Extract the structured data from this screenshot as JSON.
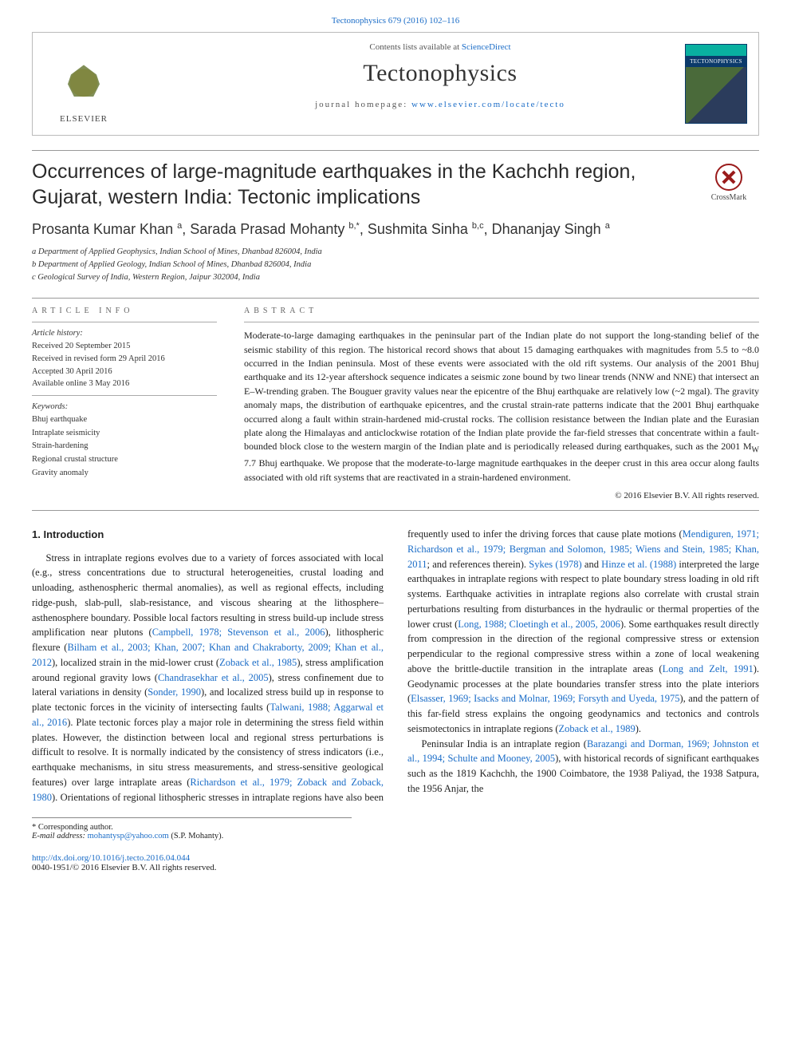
{
  "colors": {
    "link": "#1a6cc7",
    "text": "#222222",
    "rule": "#999999",
    "elsevier_orange": "#f5c56b",
    "elsevier_green": "#6b7b3a",
    "cover_blue": "#0b3a6b",
    "cover_teal": "#09b0a0",
    "crossmark_red": "#9a1b1b"
  },
  "citation": "Tectonophysics 679 (2016) 102–116",
  "header": {
    "contents_line_prefix": "Contents lists available at ",
    "contents_link": "ScienceDirect",
    "journal": "Tectonophysics",
    "homepage_prefix": "journal homepage: ",
    "homepage_url": "www.elsevier.com/locate/tecto",
    "publisher": "ELSEVIER",
    "cover_label": "TECTONOPHYSICS"
  },
  "crossmark_label": "CrossMark",
  "title": "Occurrences of large-magnitude earthquakes in the Kachchh region, Gujarat, western India: Tectonic implications",
  "authors_html": "Prosanta Kumar Khan <sup>a</sup>, Sarada Prasad Mohanty <sup>b,*</sup>, Sushmita Sinha <sup>b,c</sup>, Dhananjay Singh <sup>a</sup>",
  "affiliations": [
    "a Department of Applied Geophysics, Indian School of Mines, Dhanbad 826004, India",
    "b Department of Applied Geology, Indian School of Mines, Dhanbad 826004, India",
    "c Geological Survey of India, Western Region, Jaipur 302004, India"
  ],
  "article_info": {
    "heading": "article info",
    "history_label": "Article history:",
    "history": [
      "Received 20 September 2015",
      "Received in revised form 29 April 2016",
      "Accepted 30 April 2016",
      "Available online 3 May 2016"
    ],
    "keywords_label": "Keywords:",
    "keywords": [
      "Bhuj earthquake",
      "Intraplate seismicity",
      "Strain-hardening",
      "Regional crustal structure",
      "Gravity anomaly"
    ]
  },
  "abstract": {
    "heading": "abstract",
    "text": "Moderate-to-large damaging earthquakes in the peninsular part of the Indian plate do not support the long-standing belief of the seismic stability of this region. The historical record shows that about 15 damaging earthquakes with magnitudes from 5.5 to ~8.0 occurred in the Indian peninsula. Most of these events were associated with the old rift systems. Our analysis of the 2001 Bhuj earthquake and its 12-year aftershock sequence indicates a seismic zone bound by two linear trends (NNW and NNE) that intersect an E–W-trending graben. The Bouguer gravity values near the epicentre of the Bhuj earthquake are relatively low (~2 mgal). The gravity anomaly maps, the distribution of earthquake epicentres, and the crustal strain-rate patterns indicate that the 2001 Bhuj earthquake occurred along a fault within strain-hardened mid-crustal rocks. The collision resistance between the Indian plate and the Eurasian plate along the Himalayas and anticlockwise rotation of the Indian plate provide the far-field stresses that concentrate within a fault-bounded block close to the western margin of the Indian plate and is periodically released during earthquakes, such as the 2001 M_W 7.7 Bhuj earthquake. We propose that the moderate-to-large magnitude earthquakes in the deeper crust in this area occur along faults associated with old rift systems that are reactivated in a strain-hardened environment.",
    "copyright": "© 2016 Elsevier B.V. All rights reserved."
  },
  "body": {
    "section_number_title": "1. Introduction",
    "col_left": "Stress in intraplate regions evolves due to a variety of forces associated with local (e.g., stress concentrations due to structural heterogeneities, crustal loading and unloading, asthenospheric thermal anomalies), as well as regional effects, including ridge-push, slab-pull, slab-resistance, and viscous shearing at the lithosphere–asthenosphere boundary. Possible local factors resulting in stress build-up include stress amplification near plutons (",
    "ref1": "Campbell, 1978; Stevenson et al., 2006",
    "t2": "), lithospheric flexure (",
    "ref2": "Bilham et al., 2003; Khan, 2007; Khan and Chakraborty, 2009; Khan et al., 2012",
    "t3": "), localized strain in the mid-lower crust (",
    "ref3": "Zoback et al., 1985",
    "t4": "), stress amplification around regional gravity lows (",
    "ref4": "Chandrasekhar et al., 2005",
    "t5": "), stress confinement due to lateral variations in density (",
    "ref5": "Sonder, 1990",
    "t6": "), and localized stress build up in response to plate tectonic forces in the vicinity of intersecting faults (",
    "ref6": "Talwani, 1988; Aggarwal et al., 2016",
    "t7": "). Plate tectonic forces play a major role in determining the stress field within plates. However, the distinction between local and regional stress perturbations is difficult to resolve. It is normally indicated by the consistency of stress indicators (i.e., earthquake mechanisms, in situ stress measurements, and stress-sensitive geological features) over large",
    "col_right_1": "intraplate areas (",
    "rref1": "Richardson et al., 1979; Zoback and Zoback, 1980",
    "rt2": "). Orientations of regional lithospheric stresses in intraplate regions have also been frequently used to infer the driving forces that cause plate motions (",
    "rref2": "Mendiguren, 1971; Richardson et al., 1979; Bergman and Solomon, 1985; Wiens and Stein, 1985; Khan, 2011",
    "rt3": "; and references therein). ",
    "rref3": "Sykes (1978)",
    "rt4": " and ",
    "rref4": "Hinze et al. (1988)",
    "rt5": " interpreted the large earthquakes in intraplate regions with respect to plate boundary stress loading in old rift systems. Earthquake activities in intraplate regions also correlate with crustal strain perturbations resulting from disturbances in the hydraulic or thermal properties of the lower crust (",
    "rref5": "Long, 1988; Cloetingh et al., 2005, 2006",
    "rt6": "). Some earthquakes result directly from compression in the direction of the regional compressive stress or extension perpendicular to the regional compressive stress within a zone of local weakening above the brittle-ductile transition in the intraplate areas (",
    "rref6": "Long and Zelt, 1991",
    "rt7": "). Geodynamic processes at the plate boundaries transfer stress into the plate interiors (",
    "rref7": "Elsasser, 1969; Isacks and Molnar, 1969; Forsyth and Uyeda, 1975",
    "rt8": "), and the pattern of this far-field stress explains the ongoing geodynamics and tectonics and controls seismotectonics in intraplate regions (",
    "rref8": "Zoback et al., 1989",
    "rt9": ").",
    "para2_a": "Peninsular India is an intraplate region (",
    "p2ref1": "Barazangi and Dorman, 1969; Johnston et al., 1994; Schulte and Mooney, 2005",
    "para2_b": "), with historical records of significant earthquakes such as the 1819 Kachchh, the 1900 Coimbatore, the 1938 Paliyad, the 1938 Satpura, the 1956 Anjar, the"
  },
  "footnote": {
    "corr": "* Corresponding author.",
    "email_label": "E-mail address: ",
    "email": "mohantysp@yahoo.com",
    "email_suffix": " (S.P. Mohanty)."
  },
  "doi": {
    "url": "http://dx.doi.org/10.1016/j.tecto.2016.04.044",
    "issn_line": "0040-1951/© 2016 Elsevier B.V. All rights reserved."
  }
}
